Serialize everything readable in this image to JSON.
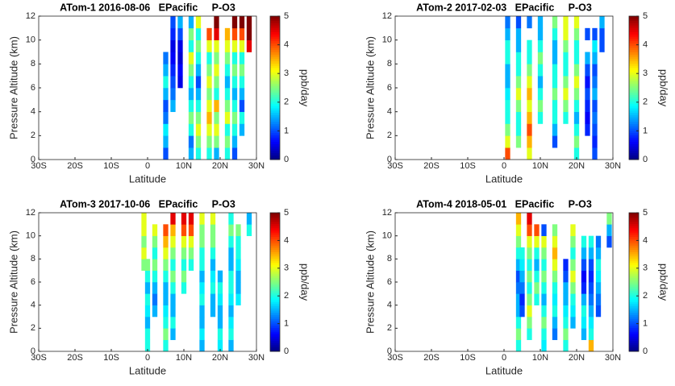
{
  "chart_data": [
    {
      "type": "heatmap",
      "title": "ATom-1 2016-08-06   EPacific     P-O3",
      "xlabel": "Latitude",
      "ylabel": "Pressure Altitude (km)",
      "colorbar_label": "ppb/day",
      "colormap": "jet",
      "xlim": [
        -30,
        30
      ],
      "xticks": [
        {
          "value": -30,
          "label": "30S"
        },
        {
          "value": -20,
          "label": "20S"
        },
        {
          "value": -10,
          "label": "10S"
        },
        0,
        {
          "value": 10,
          "label": "10N"
        },
        {
          "value": 20,
          "label": "20N"
        },
        {
          "value": 30,
          "label": "30N"
        }
      ],
      "ylim": [
        0,
        12
      ],
      "yticks": [
        0,
        2,
        4,
        6,
        8,
        10,
        12
      ],
      "clim": [
        0,
        5
      ],
      "cticks": [
        0,
        1,
        2,
        3,
        4,
        5
      ],
      "y": [
        0.5,
        1.5,
        2.5,
        3.5,
        4.5,
        5.5,
        6.5,
        7.5,
        8.5,
        9.5,
        10.5,
        11.5
      ],
      "x": [
        5,
        7,
        9,
        12,
        14,
        17,
        19,
        22,
        24,
        26,
        28
      ],
      "values": [
        [
          1,
          1.5,
          1.8,
          1.2,
          1,
          1.5,
          2,
          1.5,
          1.2,
          null,
          null,
          null
        ],
        [
          null,
          null,
          null,
          null,
          1.5,
          1.2,
          1,
          0.8,
          0.6,
          0.5,
          0.8,
          1
        ],
        [
          null,
          null,
          null,
          null,
          null,
          null,
          0.5,
          0.6,
          0.4,
          0.5,
          1,
          1.5
        ],
        [
          1.5,
          1.2,
          2,
          2.5,
          2,
          1.5,
          2,
          2.5,
          3,
          2,
          2.5,
          1.5
        ],
        [
          2,
          2.5,
          3,
          2.5,
          2,
          1.5,
          1,
          1.5,
          2,
          2.5,
          2,
          3
        ],
        [
          2,
          2.5,
          3,
          3.5,
          3,
          2.5,
          3,
          2.5,
          2,
          3,
          4,
          null
        ],
        [
          1.5,
          2.5,
          3,
          2.5,
          3.5,
          2,
          2.5,
          3,
          2.5,
          3,
          4.5,
          5
        ],
        [
          2,
          2.5,
          2,
          3,
          2.5,
          2,
          1.5,
          2,
          2.5,
          3,
          3.5,
          null
        ],
        [
          1,
          1.5,
          2,
          2.5,
          2,
          1.5,
          2,
          2.5,
          2,
          3,
          4,
          5
        ],
        [
          null,
          null,
          1.5,
          2,
          1,
          1.5,
          2,
          2.5,
          2,
          3,
          4,
          5
        ],
        [
          null,
          null,
          null,
          null,
          null,
          null,
          null,
          null,
          null,
          4.5,
          5,
          5
        ]
      ]
    },
    {
      "type": "heatmap",
      "title": "ATom-2 2017-02-03   EPacific     P-O3",
      "xlabel": "Latitude",
      "ylabel": "Pressure Altitude (km)",
      "colorbar_label": "ppb/day",
      "colormap": "jet",
      "xlim": [
        -30,
        30
      ],
      "xticks": [
        {
          "value": -30,
          "label": "30S"
        },
        {
          "value": -20,
          "label": "20S"
        },
        {
          "value": -10,
          "label": "10S"
        },
        0,
        {
          "value": 10,
          "label": "10N"
        },
        {
          "value": 20,
          "label": "20N"
        },
        {
          "value": 30,
          "label": "30N"
        }
      ],
      "ylim": [
        0,
        12
      ],
      "yticks": [
        0,
        2,
        4,
        6,
        8,
        10,
        12
      ],
      "clim": [
        0,
        5
      ],
      "cticks": [
        0,
        1,
        2,
        3,
        4,
        5
      ],
      "y": [
        0.5,
        1.5,
        2.5,
        3.5,
        4.5,
        5.5,
        6.5,
        7.5,
        8.5,
        9.5,
        10.5,
        11.5
      ],
      "x": [
        1,
        4,
        7,
        10,
        14,
        17,
        20,
        23,
        25,
        27
      ],
      "values": [
        [
          4,
          3,
          2.5,
          2,
          2,
          1.8,
          1.5,
          1.5,
          2,
          2,
          1.5,
          1.2
        ],
        [
          null,
          2.5,
          2,
          2,
          2.5,
          3,
          2.5,
          2,
          2,
          1.5,
          1.5,
          1
        ],
        [
          3,
          3.5,
          4,
          3.5,
          3,
          3.5,
          3,
          2.5,
          2,
          2,
          null,
          1.2
        ],
        [
          null,
          null,
          null,
          2,
          2.5,
          2,
          1.5,
          2,
          2.5,
          2,
          1.5,
          1.5
        ],
        [
          null,
          1,
          1.5,
          2,
          2,
          2.5,
          2,
          2,
          1.5,
          1.5,
          2,
          2.5
        ],
        [
          null,
          null,
          null,
          2,
          2.5,
          3,
          2.5,
          2,
          2,
          2.5,
          3,
          3
        ],
        [
          2,
          2.5,
          2,
          1.5,
          2,
          2.5,
          3,
          2.5,
          2,
          2,
          2.5,
          3
        ],
        [
          null,
          null,
          0.8,
          0.6,
          0.8,
          1,
          0.7,
          1,
          1.5,
          null,
          1,
          null
        ],
        [
          1,
          0.8,
          1,
          1.2,
          1,
          1.5,
          1.2,
          1,
          1.5,
          1.8,
          1,
          null
        ],
        [
          null,
          null,
          null,
          null,
          null,
          null,
          null,
          null,
          null,
          1,
          1,
          1.5
        ]
      ]
    },
    {
      "type": "heatmap",
      "title": "ATom-3 2017-10-06   EPacific     P-O3",
      "xlabel": "Latitude",
      "ylabel": "Pressure Altitude (km)",
      "colorbar_label": "ppb/day",
      "colormap": "jet",
      "xlim": [
        -30,
        30
      ],
      "xticks": [
        {
          "value": -30,
          "label": "30S"
        },
        {
          "value": -20,
          "label": "20S"
        },
        {
          "value": -10,
          "label": "10S"
        },
        0,
        {
          "value": 10,
          "label": "10N"
        },
        {
          "value": 20,
          "label": "20N"
        },
        {
          "value": 30,
          "label": "30N"
        }
      ],
      "ylim": [
        0,
        12
      ],
      "yticks": [
        0,
        2,
        4,
        6,
        8,
        10,
        12
      ],
      "clim": [
        0,
        5
      ],
      "cticks": [
        0,
        1,
        2,
        3,
        4,
        5
      ],
      "y": [
        0.5,
        1.5,
        2.5,
        3.5,
        4.5,
        5.5,
        6.5,
        7.5,
        8.5,
        9.5,
        10.5,
        11.5
      ],
      "x": [
        -1,
        0,
        2,
        5,
        7,
        10,
        12,
        15,
        18,
        20,
        23,
        25,
        28
      ],
      "values": [
        [
          null,
          null,
          null,
          null,
          null,
          null,
          null,
          2.5,
          3,
          2.5,
          3,
          3
        ],
        [
          2,
          2,
          1.5,
          1.8,
          2,
          1.5,
          2,
          2.5,
          null,
          null,
          null,
          null
        ],
        [
          null,
          null,
          null,
          1.5,
          1.2,
          1.5,
          2,
          2.5,
          2,
          2.5,
          3,
          null
        ],
        [
          2,
          2.5,
          2,
          1.8,
          1.5,
          1.5,
          2,
          2.5,
          3,
          3.5,
          4,
          null
        ],
        [
          null,
          1.5,
          2,
          1.5,
          1.5,
          2,
          2.5,
          2,
          2.5,
          3,
          3.5,
          4.5
        ],
        [
          null,
          null,
          null,
          null,
          null,
          2,
          2.5,
          2,
          2.5,
          3,
          4,
          4.5
        ],
        [
          null,
          null,
          null,
          null,
          null,
          null,
          null,
          2,
          2.5,
          3,
          4,
          4.5
        ],
        [
          1.5,
          1.8,
          1.5,
          1.5,
          2,
          1.8,
          1.5,
          2,
          2,
          2.5,
          2.5,
          3
        ],
        [
          null,
          null,
          null,
          1.5,
          1.5,
          2,
          1.8,
          1.5,
          2,
          2.5,
          2.5,
          3
        ],
        [
          1.8,
          2,
          1.5,
          1.5,
          1.8,
          2,
          1.5,
          null,
          null,
          null,
          null,
          null
        ],
        [
          1.5,
          2,
          1.8,
          1.5,
          1.8,
          2,
          2,
          1.5,
          1.5,
          2,
          2.5,
          2
        ],
        [
          null,
          null,
          null,
          null,
          1.8,
          1.5,
          1.5,
          1.8,
          2,
          2,
          2.5,
          null
        ],
        [
          null,
          null,
          null,
          null,
          null,
          null,
          null,
          null,
          null,
          null,
          2,
          1.5
        ]
      ]
    },
    {
      "type": "heatmap",
      "title": "ATom-4 2018-05-01   EPacific     P-O3",
      "xlabel": "Latitude",
      "ylabel": "Pressure Altitude (km)",
      "colorbar_label": "ppb/day",
      "colormap": "jet",
      "xlim": [
        -30,
        30
      ],
      "xticks": [
        {
          "value": -30,
          "label": "30S"
        },
        {
          "value": -20,
          "label": "20S"
        },
        {
          "value": -10,
          "label": "10S"
        },
        0,
        {
          "value": 10,
          "label": "10N"
        },
        {
          "value": 20,
          "label": "20N"
        },
        {
          "value": 30,
          "label": "30N"
        }
      ],
      "ylim": [
        0,
        12
      ],
      "yticks": [
        0,
        2,
        4,
        6,
        8,
        10,
        12
      ],
      "clim": [
        0,
        5
      ],
      "cticks": [
        0,
        1,
        2,
        3,
        4,
        5
      ],
      "y": [
        0.5,
        1.5,
        2.5,
        3.5,
        4.5,
        5.5,
        6.5,
        7.5,
        8.5,
        9.5,
        10.5,
        11.5
      ],
      "x": [
        4,
        5,
        7,
        9,
        11,
        14,
        17,
        19,
        22,
        24,
        26,
        29
      ],
      "values": [
        [
          2,
          2.5,
          2,
          1.5,
          1.5,
          1.2,
          1,
          1.5,
          2,
          2.5,
          3,
          3.5
        ],
        [
          null,
          null,
          null,
          1,
          0.8,
          1.2,
          1.5,
          1.8,
          2,
          null,
          null,
          null
        ],
        [
          null,
          2,
          2.5,
          3,
          2.5,
          2,
          2.5,
          2,
          2.5,
          3,
          4,
          4.5
        ],
        [
          null,
          null,
          null,
          null,
          2,
          2.5,
          2,
          1.5,
          2,
          3,
          4,
          null
        ],
        [
          1.8,
          2,
          2.5,
          2,
          1.5,
          2,
          2.5,
          2,
          2.5,
          3,
          1,
          null
        ],
        [
          null,
          1.2,
          1.5,
          2,
          1.8,
          2,
          2.5,
          3,
          3.5,
          3,
          2.5,
          null
        ],
        [
          2,
          2.5,
          2,
          1.8,
          1.5,
          1.5,
          1,
          0.8,
          null,
          null,
          null,
          null
        ],
        [
          null,
          null,
          1.5,
          1.8,
          2,
          2.5,
          3,
          2.5,
          2,
          2.5,
          3,
          null
        ],
        [
          null,
          1.5,
          1.8,
          2,
          1.5,
          0.8,
          0.6,
          1,
          1.5,
          2,
          null,
          null
        ],
        [
          3.5,
          2,
          1.8,
          1.5,
          1.2,
          1,
          0.8,
          1,
          1.5,
          2,
          null,
          null
        ],
        [
          null,
          null,
          null,
          1,
          1.2,
          1.5,
          1.8,
          2,
          1.5,
          1.2,
          null,
          null
        ],
        [
          null,
          null,
          null,
          null,
          null,
          null,
          null,
          null,
          null,
          1,
          1.5,
          2.5
        ]
      ]
    }
  ]
}
